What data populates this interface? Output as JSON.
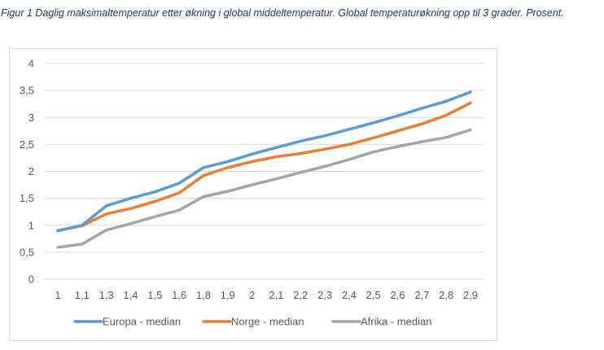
{
  "caption": "Figur 1 Daglig maksimaltemperatur etter økning i global middeltemperatur. Global temperaturøkning opp til 3 grader. Prosent.",
  "chart_data": {
    "type": "line",
    "title": "",
    "xlabel": "",
    "ylabel": "",
    "ylim": [
      0,
      4
    ],
    "yticks": [
      "0",
      "0,5",
      "1",
      "1,5",
      "2",
      "2,5",
      "3",
      "3,5",
      "4"
    ],
    "ytick_values": [
      0,
      0.5,
      1,
      1.5,
      2,
      2.5,
      3,
      3.5,
      4
    ],
    "categories": [
      "1",
      "1,1",
      "1,3",
      "1,4",
      "1,5",
      "1,6",
      "1,8",
      "1,9",
      "2",
      "2,1",
      "2,2",
      "2,3",
      "2,4",
      "2,5",
      "2,6",
      "2,7",
      "2,8",
      "2,9"
    ],
    "grid": true,
    "legend_position": "bottom",
    "series": [
      {
        "name": "Europa - median",
        "color": "#5b9bd5",
        "values": [
          0.9,
          1.0,
          1.36,
          1.5,
          1.62,
          1.78,
          2.07,
          2.18,
          2.32,
          2.44,
          2.56,
          2.66,
          2.78,
          2.9,
          3.03,
          3.17,
          3.3,
          3.47
        ]
      },
      {
        "name": "Norge - median",
        "color": "#ed7d31",
        "values": [
          0.9,
          0.99,
          1.21,
          1.31,
          1.44,
          1.6,
          1.92,
          2.07,
          2.18,
          2.27,
          2.33,
          2.41,
          2.5,
          2.62,
          2.75,
          2.88,
          3.04,
          3.27
        ]
      },
      {
        "name": "Afrika - median",
        "color": "#a5a5a5",
        "values": [
          0.59,
          0.65,
          0.91,
          1.03,
          1.16,
          1.28,
          1.53,
          1.63,
          1.75,
          1.86,
          1.98,
          2.09,
          2.22,
          2.36,
          2.46,
          2.55,
          2.63,
          2.77
        ]
      }
    ]
  }
}
